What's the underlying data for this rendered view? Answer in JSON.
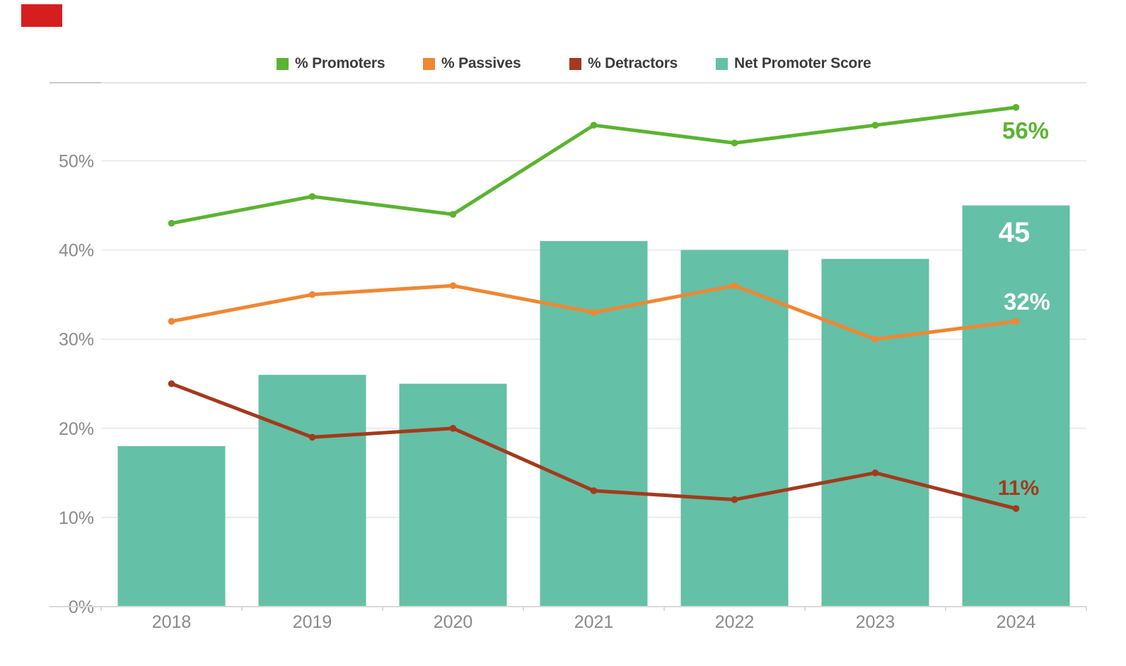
{
  "page": {
    "background": "#ffffff",
    "corner_marker_color": "#d51f1f"
  },
  "chart_data": {
    "type": "combo-bar-line",
    "title": "",
    "categories": [
      "2018",
      "2019",
      "2020",
      "2021",
      "2022",
      "2023",
      "2024"
    ],
    "series": [
      {
        "name": "% Promoters",
        "type": "line",
        "color": "#5bb331",
        "values": [
          43,
          46,
          44,
          54,
          52,
          54,
          56
        ],
        "end_label": "56%",
        "end_label_color": "#5bb331"
      },
      {
        "name": "% Passives",
        "type": "line",
        "color": "#ef8733",
        "values": [
          32,
          35,
          36,
          33,
          36,
          30,
          32
        ],
        "end_label": "32%",
        "end_label_color": "#ffffff"
      },
      {
        "name": "% Detractors",
        "type": "line",
        "color": "#a23a1d",
        "values": [
          25,
          19,
          20,
          13,
          12,
          15,
          11
        ],
        "end_label": "11%",
        "end_label_color": "#a23a1d"
      },
      {
        "name": "Net Promoter Score",
        "type": "bar",
        "color": "#64c0a6",
        "values": [
          18,
          26,
          25,
          41,
          40,
          39,
          45
        ],
        "end_label": "45",
        "end_label_color": "#ffffff"
      }
    ],
    "y_axis": {
      "tick_labels": [
        "0%",
        "10%",
        "20%",
        "30%",
        "40%",
        "50%"
      ],
      "tick_values": [
        0,
        10,
        20,
        30,
        40,
        50
      ],
      "range": [
        0,
        58.8
      ],
      "grid": true,
      "label_color": "#8a8a8a"
    },
    "x_axis": {
      "label_color": "#8a8a8a"
    },
    "legend_position": "top",
    "grid_color": "#ebebeb",
    "axis_line_color": "#d9d9d9"
  }
}
